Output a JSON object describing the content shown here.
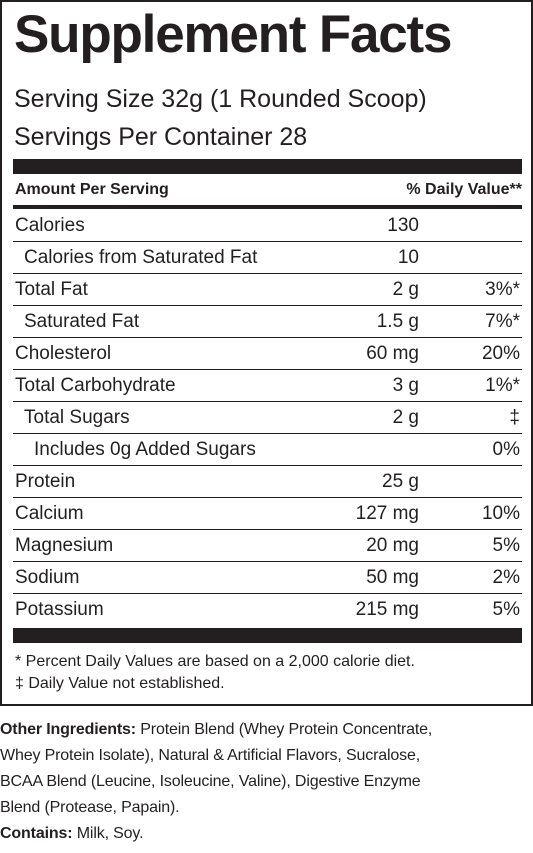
{
  "label": {
    "title": "Supplement Facts",
    "serving_size": "Serving Size 32g (1 Rounded Scoop)",
    "servings_per_container": "Servings Per Container  28",
    "header_left": "Amount Per Serving",
    "header_right": "% Daily Value**",
    "rows": [
      {
        "name": "Calories",
        "amount": "130",
        "dv": "",
        "indent": 0
      },
      {
        "name": "Calories from Saturated Fat",
        "amount": "10",
        "dv": "",
        "indent": 1
      },
      {
        "name": "Total Fat",
        "amount": "2 g",
        "dv": "3%*",
        "indent": 0
      },
      {
        "name": "Saturated Fat",
        "amount": "1.5 g",
        "dv": "7%*",
        "indent": 1
      },
      {
        "name": "Cholesterol",
        "amount": "60 mg",
        "dv": "20%",
        "indent": 0
      },
      {
        "name": "Total Carbohydrate",
        "amount": "3 g",
        "dv": "1%*",
        "indent": 0
      },
      {
        "name": "Total Sugars",
        "amount": "2 g",
        "dv": "‡",
        "indent": 1
      },
      {
        "name": "Includes 0g Added Sugars",
        "amount": "",
        "dv": "0%",
        "indent": 2
      },
      {
        "name": "Protein",
        "amount": "25 g",
        "dv": "",
        "indent": 0
      },
      {
        "name": "Calcium",
        "amount": "127 mg",
        "dv": "10%",
        "indent": 0
      },
      {
        "name": "Magnesium",
        "amount": "20 mg",
        "dv": "5%",
        "indent": 0
      },
      {
        "name": "Sodium",
        "amount": "50 mg",
        "dv": "2%",
        "indent": 0
      },
      {
        "name": "Potassium",
        "amount": "215 mg",
        "dv": "5%",
        "indent": 0
      }
    ],
    "footnote_1": "* Percent Daily Values are based on a 2,000 calorie diet.",
    "footnote_2": "‡ Daily Value not established."
  },
  "ingredients": {
    "label": "Other Ingredients:",
    "line_1": " Protein Blend (Whey Protein Concentrate,",
    "line_2": "Whey Protein Isolate), Natural & Artificial Flavors, Sucralose,",
    "line_3": "BCAA Blend (Leucine, Isoleucine, Valine), Digestive Enzyme",
    "line_4": "Blend (Protease, Papain).",
    "contains_label": "Contains:",
    "contains_value": " Milk, Soy."
  },
  "colors": {
    "ink": "#231f20",
    "background": "#ffffff"
  }
}
